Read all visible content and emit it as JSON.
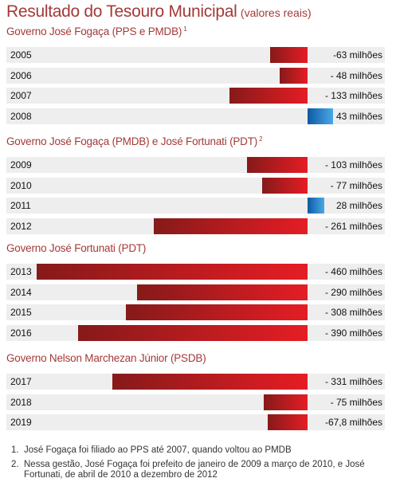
{
  "title": "Resultado do Tesouro Municipal",
  "subtitle": "(valores reais)",
  "chart_data": {
    "type": "bar",
    "orientation": "horizontal",
    "unit": "milhões",
    "xlim": [
      -460,
      43
    ],
    "groups": [
      {
        "title": "Governo José Fogaça (PPS e PMDB)",
        "note_ref": "1",
        "rows": [
          {
            "year": "2005",
            "value": -63,
            "label": "-63 milhões"
          },
          {
            "year": "2006",
            "value": -48,
            "label": "- 48 milhões"
          },
          {
            "year": "2007",
            "value": -133,
            "label": "- 133 milhões"
          },
          {
            "year": "2008",
            "value": 43,
            "label": "43 milhões"
          }
        ]
      },
      {
        "title": "Governo José Fogaça (PMDB) e José Fortunati (PDT)",
        "note_ref": "2",
        "rows": [
          {
            "year": "2009",
            "value": -103,
            "label": "- 103 milhões"
          },
          {
            "year": "2010",
            "value": -77,
            "label": "- 77 milhões"
          },
          {
            "year": "2011",
            "value": 28,
            "label": "28 milhões"
          },
          {
            "year": "2012",
            "value": -261,
            "label": "- 261 milhões"
          }
        ]
      },
      {
        "title": "Governo José Fortunati (PDT)",
        "note_ref": "",
        "rows": [
          {
            "year": "2013",
            "value": -460,
            "label": "- 460 milhões"
          },
          {
            "year": "2014",
            "value": -290,
            "label": "- 290 milhões"
          },
          {
            "year": "2015",
            "value": -308,
            "label": "- 308 milhões"
          },
          {
            "year": "2016",
            "value": -390,
            "label": "- 390 milhões"
          }
        ]
      },
      {
        "title": "Governo Nelson Marchezan Júnior (PSDB)",
        "note_ref": "",
        "rows": [
          {
            "year": "2017",
            "value": -331,
            "label": "- 331 milhões"
          },
          {
            "year": "2018",
            "value": -75,
            "label": "- 75 milhões"
          },
          {
            "year": "2019",
            "value": -67.8,
            "label": "-67,8 milhões"
          }
        ]
      }
    ]
  },
  "notes": [
    {
      "num": "1.",
      "text": "José Fogaça foi filiado ao PPS até 2007, quando voltou ao PMDB"
    },
    {
      "num": "2.",
      "text": "Nessa gestão, José Fogaça foi prefeito de janeiro de 2009 a março de 2010, e José Fortunati, de abril de 2010 a dezembro de 2012"
    }
  ],
  "colors": {
    "negative": "#e51d24",
    "negative_dark": "#861a1a",
    "positive": "#1b75c3",
    "title": "#a33a37"
  }
}
